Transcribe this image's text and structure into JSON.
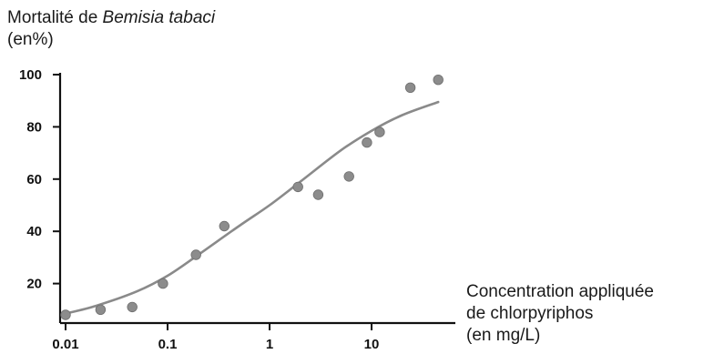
{
  "chart_data": {
    "type": "scatter",
    "ylabel": {
      "line1_prefix": "Mortalité de ",
      "line1_species": "Bemisia tabaci",
      "line2": "(en%)"
    },
    "xlabel": {
      "line1": "Concentration appliquée",
      "line2": "de chlorpyriphos",
      "line3": "(en mg/L)"
    },
    "x_scale": "log",
    "xlim": [
      0.01,
      50
    ],
    "ylim": [
      5,
      100
    ],
    "x_ticks": [
      0.01,
      0.1,
      1,
      10
    ],
    "x_tick_labels": [
      "0.01",
      "0.1",
      "1",
      "10"
    ],
    "y_ticks": [
      20,
      40,
      60,
      80,
      100
    ],
    "y_tick_labels": [
      "20",
      "40",
      "60",
      "80",
      "100"
    ],
    "grid": false,
    "colors": {
      "points": "#8c8c8c",
      "curve": "#8a8a8a",
      "axes": "#111111"
    },
    "series": [
      {
        "kind": "points",
        "x": [
          0.01,
          0.022,
          0.045,
          0.09,
          0.19,
          0.36,
          1.9,
          3.0,
          6.0,
          9.0,
          12.0,
          24.0,
          45.0
        ],
        "y": [
          8,
          10,
          11,
          20,
          31,
          42,
          57,
          54,
          61,
          74,
          78,
          95,
          98
        ]
      },
      {
        "kind": "fitted-curve",
        "x": [
          0.01,
          0.02,
          0.05,
          0.1,
          0.2,
          0.5,
          1,
          2,
          5,
          10,
          20,
          45
        ],
        "y": [
          8.5,
          11.5,
          17,
          23,
          31,
          42,
          50,
          59,
          71,
          78.5,
          84.5,
          89.5
        ]
      }
    ]
  }
}
